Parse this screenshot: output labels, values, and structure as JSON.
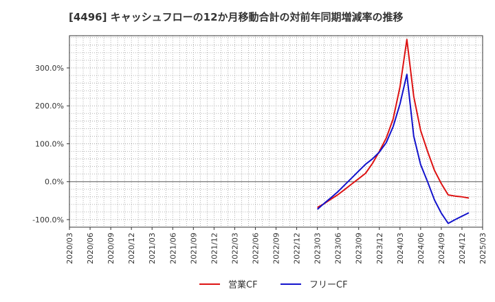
{
  "chart_data": {
    "type": "line",
    "title": "[4496]  キャッシュフローの12か月移動合計の対前年同期増減率の推移",
    "xlabel": "",
    "ylabel": "",
    "ylim": [
      -120,
      385
    ],
    "yticks": [
      -100,
      0,
      100,
      200,
      300
    ],
    "ytick_labels": [
      "-100.0%",
      "0.0%",
      "100.0%",
      "200.0%",
      "300.0%"
    ],
    "x_tick_labels": [
      "2020/03",
      "2020/06",
      "2020/09",
      "2020/12",
      "2021/03",
      "2021/06",
      "2021/09",
      "2021/12",
      "2022/03",
      "2022/06",
      "2022/09",
      "2022/12",
      "2023/03",
      "2023/06",
      "2023/09",
      "2023/12",
      "2024/03",
      "2024/06",
      "2024/09",
      "2024/12",
      "2025/03"
    ],
    "x_months_per_tick": 3,
    "x_total_months": 60,
    "series": [
      {
        "name": "営業CF",
        "color": "#dd1111",
        "points": [
          [
            36,
            -68
          ],
          [
            37,
            -58
          ],
          [
            38,
            -46
          ],
          [
            39,
            -34
          ],
          [
            40,
            -20
          ],
          [
            41,
            -6
          ],
          [
            42,
            8
          ],
          [
            43,
            22
          ],
          [
            44,
            48
          ],
          [
            45,
            80
          ],
          [
            46,
            115
          ],
          [
            47,
            165
          ],
          [
            48,
            250
          ],
          [
            49,
            375
          ],
          [
            50,
            225
          ],
          [
            51,
            135
          ],
          [
            52,
            80
          ],
          [
            53,
            30
          ],
          [
            54,
            -5
          ],
          [
            55,
            -35
          ],
          [
            56,
            -38
          ],
          [
            57,
            -40
          ],
          [
            58,
            -43
          ]
        ]
      },
      {
        "name": "フリーCF",
        "color": "#1111cc",
        "points": [
          [
            36,
            -73
          ],
          [
            37,
            -57
          ],
          [
            38,
            -42
          ],
          [
            39,
            -26
          ],
          [
            40,
            -8
          ],
          [
            41,
            10
          ],
          [
            42,
            28
          ],
          [
            43,
            46
          ],
          [
            44,
            60
          ],
          [
            45,
            78
          ],
          [
            46,
            103
          ],
          [
            47,
            145
          ],
          [
            48,
            205
          ],
          [
            49,
            283
          ],
          [
            50,
            120
          ],
          [
            51,
            45
          ],
          [
            52,
            0
          ],
          [
            53,
            -48
          ],
          [
            54,
            -83
          ],
          [
            55,
            -110
          ],
          [
            56,
            -100
          ],
          [
            57,
            -91
          ],
          [
            58,
            -82
          ]
        ]
      }
    ],
    "legend_position": "bottom-center",
    "grid": true
  }
}
